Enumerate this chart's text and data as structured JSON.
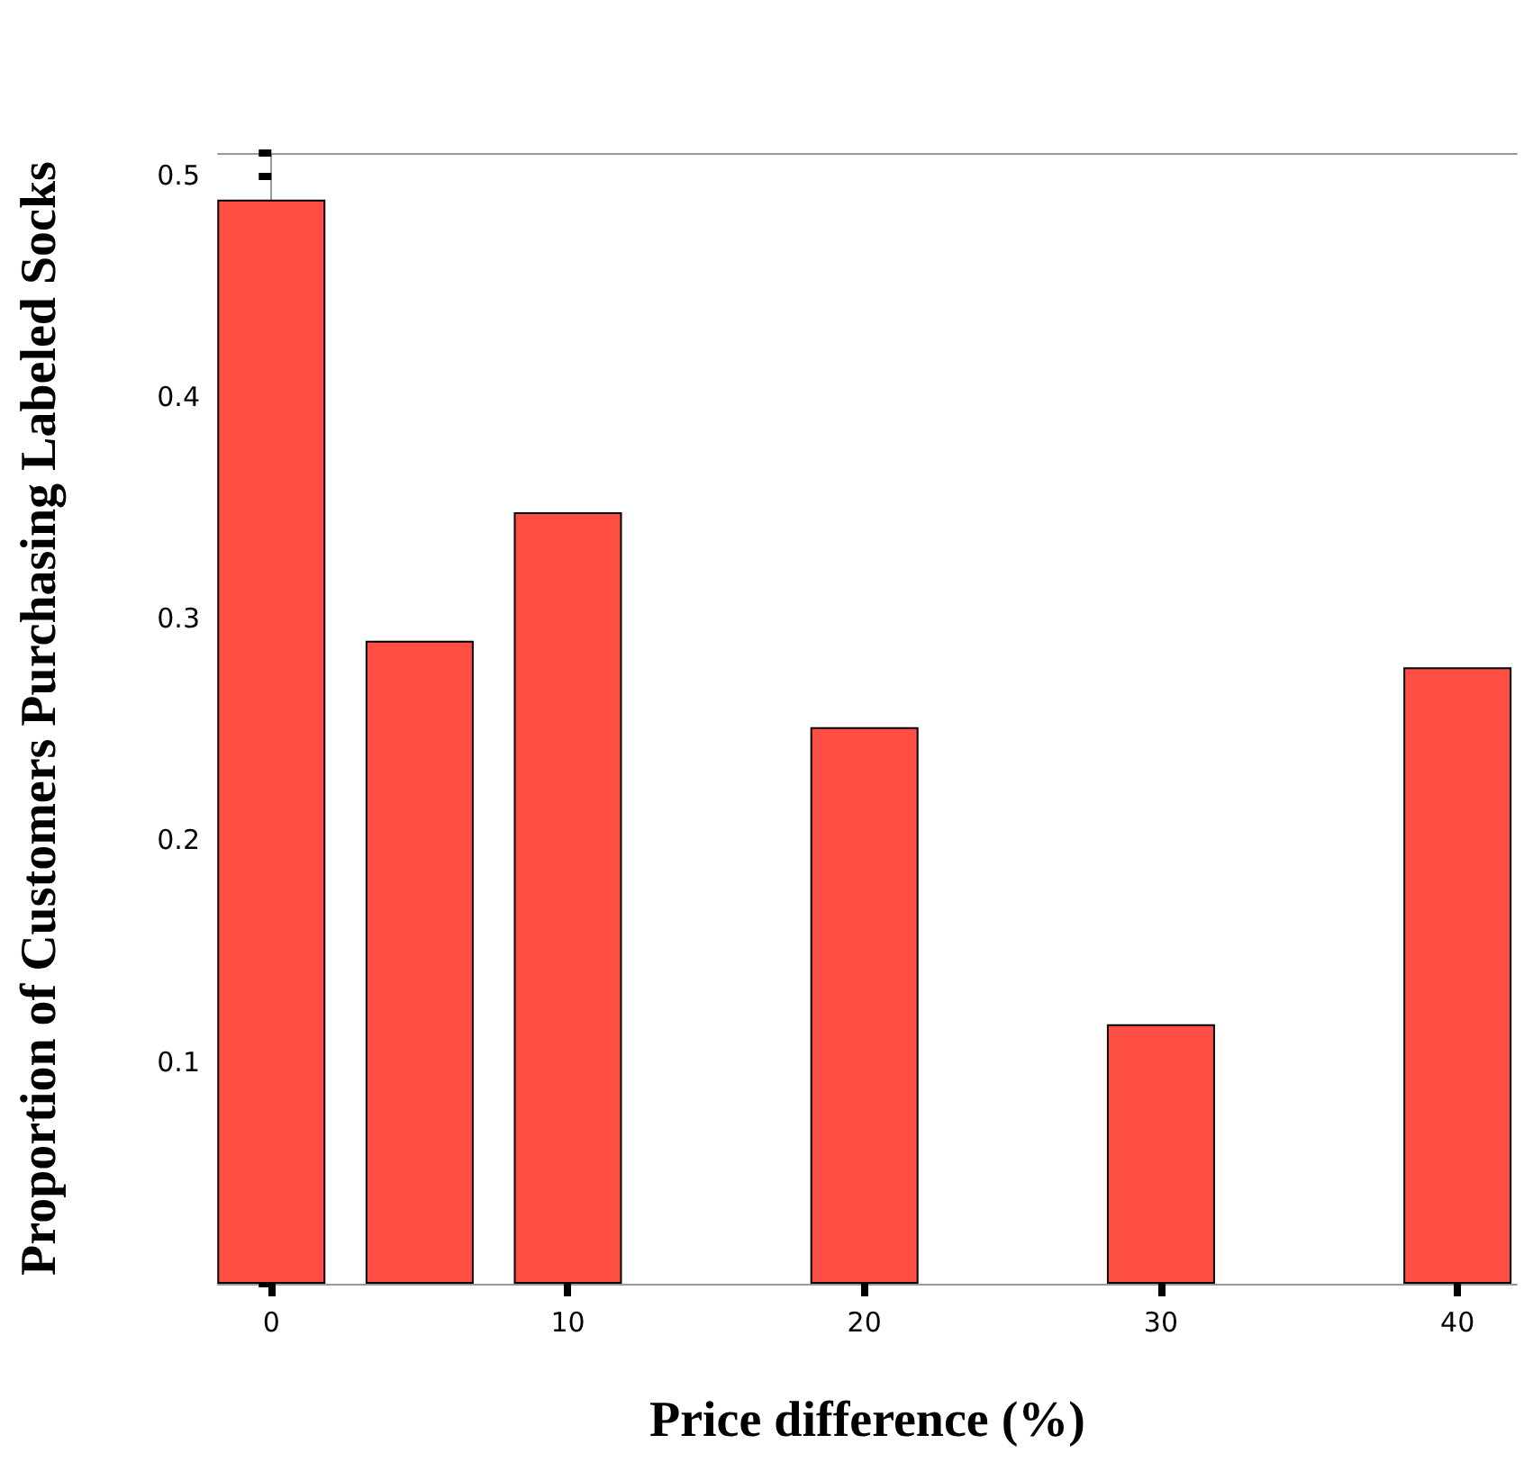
{
  "chart_data": {
    "type": "bar",
    "xlabel": "Price difference (%)",
    "ylabel": "Proportion of Customers Purchasing Labeled Socks",
    "x": [
      0,
      5,
      10,
      20,
      30,
      40
    ],
    "values": [
      0.489,
      0.29,
      0.348,
      0.251,
      0.117,
      0.278
    ],
    "color": "#ff4f44",
    "xlim": [
      -1.8,
      42
    ],
    "xticks": [
      0,
      10,
      20,
      30,
      40
    ],
    "ylim": [
      0,
      0.51
    ],
    "yticks": [
      0.1,
      0.2,
      0.3,
      0.4,
      0.5
    ]
  }
}
